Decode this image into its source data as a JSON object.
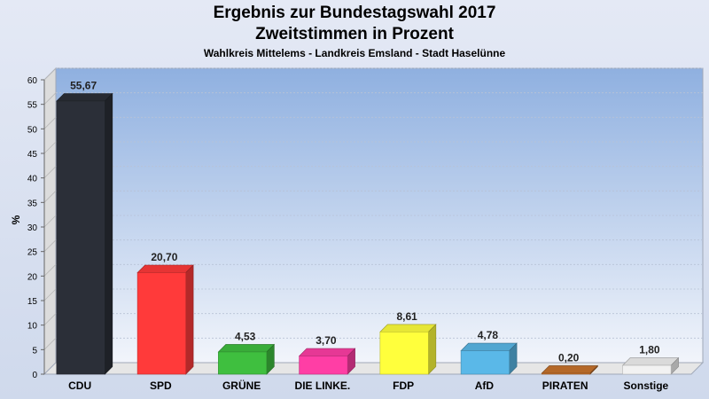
{
  "chart_data": {
    "type": "bar",
    "title": "Ergebnis zur Bundestagswahl 2017",
    "subtitle": "Zweitstimmen in Prozent",
    "caption": "Wahlkreis Mittelems - Landkreis Emsland - Stadt Haselünne",
    "ylabel": "%",
    "xlabel": "",
    "ylim": [
      0,
      60
    ],
    "yticks": [
      0,
      5,
      10,
      15,
      20,
      25,
      30,
      35,
      40,
      45,
      50,
      55,
      60
    ],
    "grid": true,
    "categories": [
      "CDU",
      "SPD",
      "GRÜNE",
      "DIE LINKE.",
      "FDP",
      "AfD",
      "PIRATEN",
      "Sonstige"
    ],
    "values": [
      55.67,
      20.7,
      4.53,
      3.7,
      8.61,
      4.78,
      0.2,
      1.8
    ],
    "value_labels": [
      "55,67",
      "20,70",
      "4,53",
      "3,70",
      "8,61",
      "4,78",
      "0,20",
      "1,80"
    ],
    "colors": [
      "#2b2f38",
      "#ff3a3a",
      "#3fbf3f",
      "#ff3ea5",
      "#ffff3c",
      "#5ab8e8",
      "#c8732c",
      "#f2f2f2"
    ]
  }
}
